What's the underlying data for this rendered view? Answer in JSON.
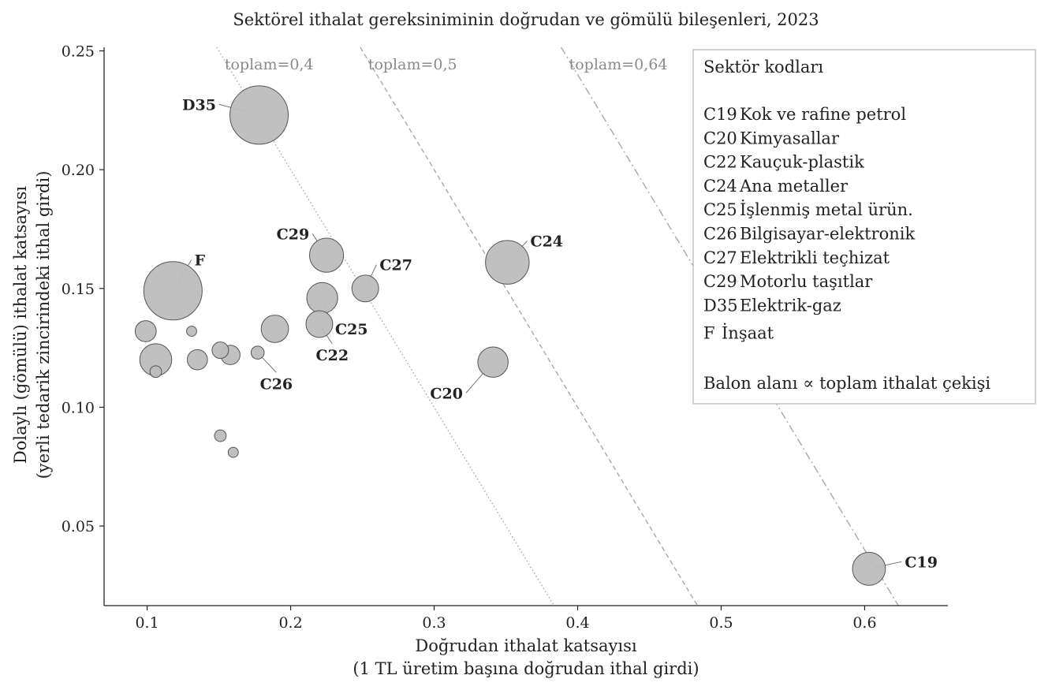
{
  "chart_data": {
    "type": "scatter",
    "title": "Sektörel ithalat gereksiniminin doğrudan ve gömülü bileşenleri, 2023",
    "xlabel_line1": "Doğrudan ithalat katsayısı",
    "xlabel_line2": "(1 TL üretim başına doğrudan ithal girdi)",
    "ylabel_line1": "Dolaylı (gömülü) ithalat katsayısı",
    "ylabel_line2": "(yerli tedarik zincirindeki ithal girdi)",
    "xlim": [
      0.07,
      0.658
    ],
    "ylim": [
      0.0165,
      0.2515
    ],
    "x_ticks": [
      0.1,
      0.2,
      0.3,
      0.4,
      0.5,
      0.6
    ],
    "x_tick_labels": [
      "0.1",
      "0.2",
      "0.3",
      "0.4",
      "0.5",
      "0.6"
    ],
    "y_ticks": [
      0.05,
      0.1,
      0.15,
      0.2,
      0.25
    ],
    "y_tick_labels": [
      "0.05",
      "0.10",
      "0.15",
      "0.20",
      "0.25"
    ],
    "reference_lines": [
      {
        "total": 0.4,
        "label": "toplam=0,4",
        "style": "dotted"
      },
      {
        "total": 0.5,
        "label": "toplam=0,5",
        "style": "dashed"
      },
      {
        "total": 0.64,
        "label": "toplam=0,64",
        "style": "dashdot"
      }
    ],
    "size_note": "Balon alanı ∝ toplam ithalat çekişi",
    "points": [
      {
        "code": "D35",
        "x": 0.178,
        "y": 0.223,
        "s": 1.0
      },
      {
        "code": "F",
        "x": 0.118,
        "y": 0.149,
        "s": 1.0
      },
      {
        "code": "C29",
        "x": 0.225,
        "y": 0.164,
        "s": 0.34
      },
      {
        "code": "C27",
        "x": 0.252,
        "y": 0.15,
        "s": 0.21
      },
      {
        "code": "C24",
        "x": 0.351,
        "y": 0.161,
        "s": 0.56
      },
      {
        "code": "C25",
        "x": 0.222,
        "y": 0.146,
        "s": 0.28
      },
      {
        "code": "C22",
        "x": 0.22,
        "y": 0.135,
        "s": 0.21
      },
      {
        "code": "C26",
        "x": 0.177,
        "y": 0.123,
        "s": 0.05
      },
      {
        "code": "C20",
        "x": 0.341,
        "y": 0.119,
        "s": 0.27
      },
      {
        "code": "C19",
        "x": 0.603,
        "y": 0.032,
        "s": 0.32
      },
      {
        "code": "",
        "x": 0.099,
        "y": 0.132,
        "s": 0.13
      },
      {
        "code": "",
        "x": 0.106,
        "y": 0.12,
        "s": 0.3
      },
      {
        "code": "",
        "x": 0.106,
        "y": 0.115,
        "s": 0.04
      },
      {
        "code": "",
        "x": 0.131,
        "y": 0.132,
        "s": 0.03
      },
      {
        "code": "",
        "x": 0.135,
        "y": 0.12,
        "s": 0.12
      },
      {
        "code": "",
        "x": 0.151,
        "y": 0.124,
        "s": 0.08
      },
      {
        "code": "",
        "x": 0.158,
        "y": 0.122,
        "s": 0.11
      },
      {
        "code": "",
        "x": 0.189,
        "y": 0.133,
        "s": 0.22
      },
      {
        "code": "",
        "x": 0.151,
        "y": 0.088,
        "s": 0.04
      },
      {
        "code": "",
        "x": 0.16,
        "y": 0.081,
        "s": 0.03
      }
    ],
    "labels": [
      {
        "code": "D35",
        "x": 0.148,
        "y": 0.2275,
        "anchor": "end"
      },
      {
        "code": "F",
        "x": 0.133,
        "y": 0.162,
        "anchor": "start"
      },
      {
        "code": "C29",
        "x": 0.213,
        "y": 0.173,
        "anchor": "end"
      },
      {
        "code": "C27",
        "x": 0.262,
        "y": 0.16,
        "anchor": "start"
      },
      {
        "code": "C24",
        "x": 0.367,
        "y": 0.17,
        "anchor": "start"
      },
      {
        "code": "C25",
        "x": 0.231,
        "y": 0.133,
        "anchor": "start"
      },
      {
        "code": "C22",
        "x": 0.229,
        "y": 0.122,
        "anchor": "middle"
      },
      {
        "code": "C26",
        "x": 0.19,
        "y": 0.11,
        "anchor": "middle"
      },
      {
        "code": "C20",
        "x": 0.32,
        "y": 0.106,
        "anchor": "end"
      },
      {
        "code": "C19",
        "x": 0.628,
        "y": 0.035,
        "anchor": "start"
      }
    ],
    "legend": {
      "placement": "top-right",
      "title": "Sektör kodları",
      "items": [
        {
          "code": "C19",
          "name": "Kok ve rafine petrol"
        },
        {
          "code": "C20",
          "name": "Kimyasallar"
        },
        {
          "code": "C22",
          "name": "Kauçuk-plastik"
        },
        {
          "code": "C24",
          "name": "Ana metaller"
        },
        {
          "code": "C25",
          "name": "İşlenmiş metal ürün."
        },
        {
          "code": "C26",
          "name": "Bilgisayar-elektronik"
        },
        {
          "code": "C27",
          "name": "Elektrikli teçhizat"
        },
        {
          "code": "C29",
          "name": "Motorlu taşıtlar"
        },
        {
          "code": "D35",
          "name": "Elektrik-gaz"
        },
        {
          "code": "F",
          "name": "İnşaat"
        }
      ]
    },
    "colors": {
      "bubble_fill": "#bdbdbd",
      "bubble_stroke": "#555555",
      "reference_line": "#a8a8a8",
      "reference_label": "#8a8a8a",
      "axis": "#222222"
    }
  }
}
